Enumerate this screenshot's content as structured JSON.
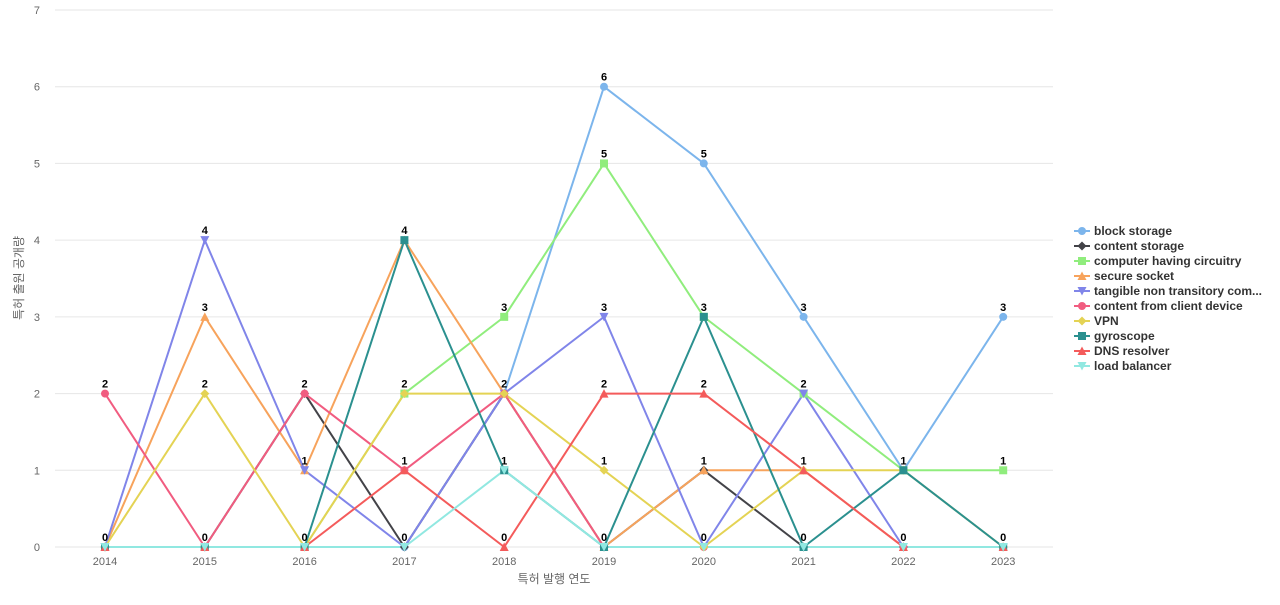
{
  "chart_data": {
    "type": "line",
    "xlabel": "특허 발행 연도",
    "ylabel": "특허 출원 공개량",
    "x": [
      "2014",
      "2015",
      "2016",
      "2017",
      "2018",
      "2019",
      "2020",
      "2021",
      "2022",
      "2023"
    ],
    "ylim": [
      0,
      7
    ],
    "yticks": [
      0,
      1,
      2,
      3,
      4,
      5,
      6,
      7
    ],
    "grid": true,
    "legend_position": "right",
    "series": [
      {
        "name": "block storage",
        "color": "#7cb5ec",
        "marker": "circle",
        "values": [
          0,
          0,
          0,
          0,
          2,
          6,
          5,
          3,
          1,
          3
        ]
      },
      {
        "name": "content storage",
        "color": "#434348",
        "marker": "diamond",
        "values": [
          0,
          0,
          2,
          0,
          2,
          0,
          1,
          0,
          0,
          0
        ]
      },
      {
        "name": "computer having circuitry",
        "color": "#90ed7d",
        "marker": "square",
        "values": [
          0,
          0,
          0,
          2,
          3,
          5,
          3,
          2,
          1,
          1
        ]
      },
      {
        "name": "secure socket",
        "color": "#f7a35c",
        "marker": "triangle",
        "values": [
          0,
          3,
          1,
          4,
          2,
          0,
          1,
          1,
          0,
          0
        ]
      },
      {
        "name": "tangible non transitory com...",
        "color": "#8085e9",
        "marker": "triangle-down",
        "values": [
          0,
          4,
          1,
          0,
          2,
          3,
          0,
          2,
          0,
          0
        ]
      },
      {
        "name": "content from client device",
        "color": "#f15c80",
        "marker": "circle",
        "values": [
          2,
          0,
          2,
          1,
          2,
          0,
          0,
          0,
          0,
          0
        ]
      },
      {
        "name": "VPN",
        "color": "#e4d354",
        "marker": "diamond",
        "values": [
          0,
          2,
          0,
          2,
          2,
          1,
          0,
          1,
          1,
          0
        ]
      },
      {
        "name": "gyroscope",
        "color": "#2b908f",
        "marker": "square",
        "values": [
          0,
          0,
          0,
          4,
          1,
          0,
          3,
          0,
          1,
          0
        ]
      },
      {
        "name": "DNS resolver",
        "color": "#f45b5b",
        "marker": "triangle",
        "values": [
          0,
          0,
          0,
          1,
          0,
          2,
          2,
          1,
          0,
          0
        ]
      },
      {
        "name": "load balancer",
        "color": "#91e8e1",
        "marker": "triangle-down",
        "values": [
          0,
          0,
          0,
          0,
          1,
          0,
          0,
          0,
          0,
          0
        ]
      }
    ],
    "data_labels": [
      {
        "x": "2014",
        "y": 2,
        "text": "2"
      },
      {
        "x": "2014",
        "y": 0,
        "text": "0"
      },
      {
        "x": "2015",
        "y": 4,
        "text": "4"
      },
      {
        "x": "2015",
        "y": 3,
        "text": "3"
      },
      {
        "x": "2015",
        "y": 2,
        "text": "2"
      },
      {
        "x": "2015",
        "y": 0,
        "text": "0"
      },
      {
        "x": "2016",
        "y": 2,
        "text": "2"
      },
      {
        "x": "2016",
        "y": 1,
        "text": "1"
      },
      {
        "x": "2016",
        "y": 0,
        "text": "0"
      },
      {
        "x": "2017",
        "y": 4,
        "text": "4"
      },
      {
        "x": "2017",
        "y": 2,
        "text": "2"
      },
      {
        "x": "2017",
        "y": 1,
        "text": "1"
      },
      {
        "x": "2017",
        "y": 0,
        "text": "0"
      },
      {
        "x": "2018",
        "y": 3,
        "text": "3"
      },
      {
        "x": "2018",
        "y": 2,
        "text": "2"
      },
      {
        "x": "2018",
        "y": 1,
        "text": "1"
      },
      {
        "x": "2018",
        "y": 0,
        "text": "0"
      },
      {
        "x": "2019",
        "y": 6,
        "text": "6"
      },
      {
        "x": "2019",
        "y": 5,
        "text": "5"
      },
      {
        "x": "2019",
        "y": 3,
        "text": "3"
      },
      {
        "x": "2019",
        "y": 2,
        "text": "2"
      },
      {
        "x": "2019",
        "y": 1,
        "text": "1"
      },
      {
        "x": "2019",
        "y": 0,
        "text": "0"
      },
      {
        "x": "2020",
        "y": 5,
        "text": "5"
      },
      {
        "x": "2020",
        "y": 3,
        "text": "3"
      },
      {
        "x": "2020",
        "y": 2,
        "text": "2"
      },
      {
        "x": "2020",
        "y": 1,
        "text": "1"
      },
      {
        "x": "2020",
        "y": 0,
        "text": "0"
      },
      {
        "x": "2021",
        "y": 3,
        "text": "3"
      },
      {
        "x": "2021",
        "y": 2,
        "text": "2"
      },
      {
        "x": "2021",
        "y": 1,
        "text": "1"
      },
      {
        "x": "2021",
        "y": 0,
        "text": "0"
      },
      {
        "x": "2022",
        "y": 1,
        "text": "1"
      },
      {
        "x": "2022",
        "y": 0,
        "text": "0"
      },
      {
        "x": "2023",
        "y": 3,
        "text": "3"
      },
      {
        "x": "2023",
        "y": 1,
        "text": "1"
      },
      {
        "x": "2023",
        "y": 0,
        "text": "0"
      }
    ]
  }
}
